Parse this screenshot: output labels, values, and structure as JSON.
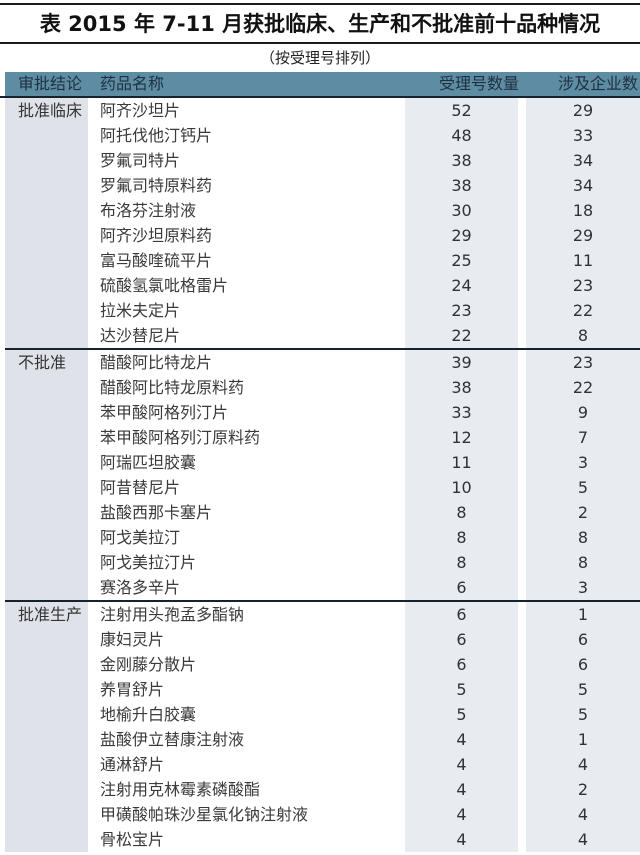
{
  "chart_data": {
    "type": "table",
    "title": "表 2015 年 7-11 月获批临床、生产和不批准前十品种情况",
    "subtitle": "（按受理号排列）",
    "columns": [
      "审批结论",
      "药品名称",
      "受理号数量",
      "涉及企业数"
    ],
    "sections": [
      {
        "conclusion": "批准临床",
        "rows": [
          {
            "drug": "阿齐沙坦片",
            "acceptance": 52,
            "enterprises": 29
          },
          {
            "drug": "阿托伐他汀钙片",
            "acceptance": 48,
            "enterprises": 33
          },
          {
            "drug": "罗氟司特片",
            "acceptance": 38,
            "enterprises": 34
          },
          {
            "drug": "罗氟司特原料药",
            "acceptance": 38,
            "enterprises": 34
          },
          {
            "drug": "布洛芬注射液",
            "acceptance": 30,
            "enterprises": 18
          },
          {
            "drug": "阿齐沙坦原料药",
            "acceptance": 29,
            "enterprises": 29
          },
          {
            "drug": "富马酸喹硫平片",
            "acceptance": 25,
            "enterprises": 11
          },
          {
            "drug": "硫酸氢氯吡格雷片",
            "acceptance": 24,
            "enterprises": 23
          },
          {
            "drug": "拉米夫定片",
            "acceptance": 23,
            "enterprises": 22
          },
          {
            "drug": "达沙替尼片",
            "acceptance": 22,
            "enterprises": 8
          }
        ]
      },
      {
        "conclusion": "不批准",
        "rows": [
          {
            "drug": "醋酸阿比特龙片",
            "acceptance": 39,
            "enterprises": 23
          },
          {
            "drug": "醋酸阿比特龙原料药",
            "acceptance": 38,
            "enterprises": 22
          },
          {
            "drug": "苯甲酸阿格列汀片",
            "acceptance": 33,
            "enterprises": 9
          },
          {
            "drug": "苯甲酸阿格列汀原料药",
            "acceptance": 12,
            "enterprises": 7
          },
          {
            "drug": "阿瑞匹坦胶囊",
            "acceptance": 11,
            "enterprises": 3
          },
          {
            "drug": "阿昔替尼片",
            "acceptance": 10,
            "enterprises": 5
          },
          {
            "drug": "盐酸西那卡塞片",
            "acceptance": 8,
            "enterprises": 2
          },
          {
            "drug": "阿戈美拉汀",
            "acceptance": 8,
            "enterprises": 8
          },
          {
            "drug": "阿戈美拉汀片",
            "acceptance": 8,
            "enterprises": 8
          },
          {
            "drug": "赛洛多辛片",
            "acceptance": 6,
            "enterprises": 3
          }
        ]
      },
      {
        "conclusion": "批准生产",
        "rows": [
          {
            "drug": "注射用头孢孟多酯钠",
            "acceptance": 6,
            "enterprises": 1
          },
          {
            "drug": "康妇灵片",
            "acceptance": 6,
            "enterprises": 6
          },
          {
            "drug": "金刚藤分散片",
            "acceptance": 6,
            "enterprises": 6
          },
          {
            "drug": "养胃舒片",
            "acceptance": 5,
            "enterprises": 5
          },
          {
            "drug": "地榆升白胶囊",
            "acceptance": 5,
            "enterprises": 5
          },
          {
            "drug": "盐酸伊立替康注射液",
            "acceptance": 4,
            "enterprises": 1
          },
          {
            "drug": "通淋舒片",
            "acceptance": 4,
            "enterprises": 4
          },
          {
            "drug": "注射用克林霉素磷酸酯",
            "acceptance": 4,
            "enterprises": 2
          },
          {
            "drug": "甲磺酸帕珠沙星氯化钠注射液",
            "acceptance": 4,
            "enterprises": 4
          },
          {
            "drug": "骨松宝片",
            "acceptance": 4,
            "enterprises": 4
          }
        ]
      }
    ]
  },
  "colors": {
    "header_bg": "#5e8ca2",
    "header_text": "#1d3240",
    "label_col_bg": "#dfe3e9",
    "num_col_bg": "#e8ebef",
    "divider": "#16222c"
  }
}
